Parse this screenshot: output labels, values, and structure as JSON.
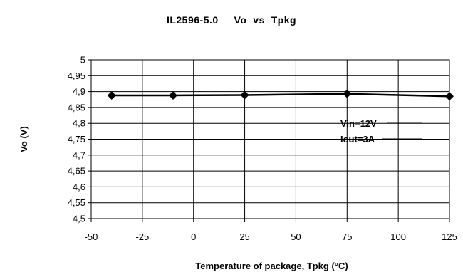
{
  "chart_data": {
    "type": "line",
    "title": "IL2596-5.0     Vo  vs  Tpkg",
    "xlabel": "Temperature of package, Tpkg (°C)",
    "ylabel": "Vo (V)",
    "xlim": [
      -50,
      125
    ],
    "ylim": [
      4.5,
      5
    ],
    "x_ticks": [
      "-50",
      "-25",
      "0",
      "25",
      "50",
      "75",
      "100",
      "125"
    ],
    "y_ticks": [
      "4,5",
      "4,55",
      "4,6",
      "4,65",
      "4,7",
      "4,75",
      "4,8",
      "4,85",
      "4,9",
      "4,95",
      "5"
    ],
    "grid": true,
    "series": [
      {
        "x": [
          -40,
          -10,
          25,
          75,
          125
        ],
        "y": [
          4.888,
          4.888,
          4.889,
          4.893,
          4.885
        ]
      }
    ],
    "annotations": [
      "Vin=12V",
      "Iout=3A"
    ],
    "colors": {
      "line": "#000000",
      "grid": "#000000"
    }
  }
}
